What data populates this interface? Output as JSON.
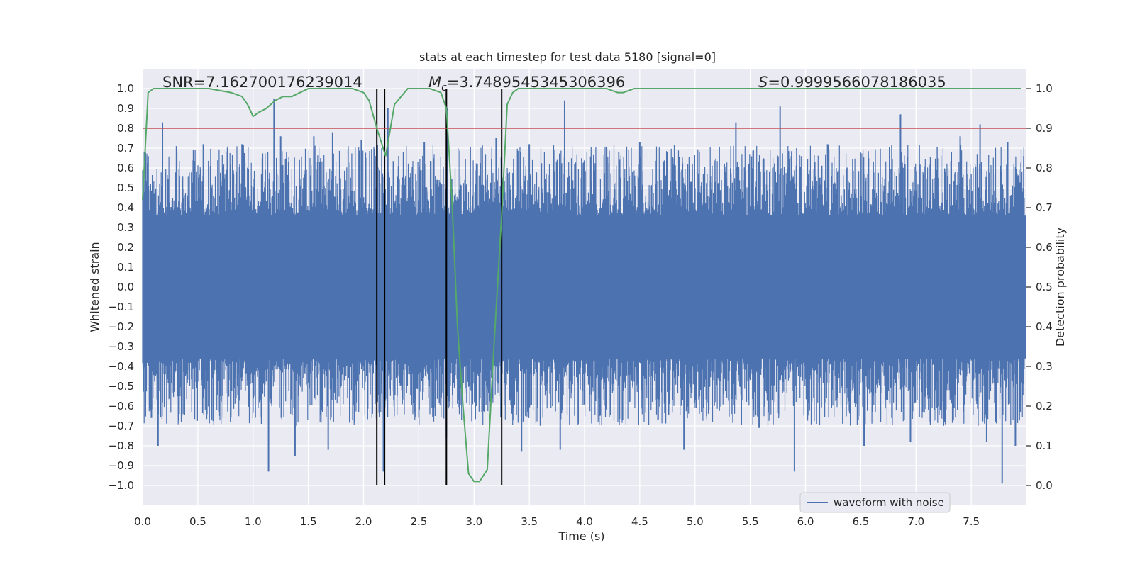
{
  "chart_data": {
    "type": "line",
    "title": "stats at each timestep for test data 5180 [signal=0]",
    "xlabel": "Time (s)",
    "ylabel": "Whitened strain",
    "y2label": "Detection probability",
    "xlim": [
      0.0,
      8.0
    ],
    "ylim": [
      -1.1,
      1.1
    ],
    "y2lim": [
      -0.05,
      1.05
    ],
    "xticks": [
      0.0,
      0.5,
      1.0,
      1.5,
      2.0,
      2.5,
      3.0,
      3.5,
      4.0,
      4.5,
      5.0,
      5.5,
      6.0,
      6.5,
      7.0,
      7.5
    ],
    "xtick_labels": [
      "0.0",
      "0.5",
      "1.0",
      "1.5",
      "2.0",
      "2.5",
      "3.0",
      "3.5",
      "4.0",
      "4.5",
      "5.0",
      "5.5",
      "6.0",
      "6.5",
      "7.0",
      "7.5"
    ],
    "yticks": [
      1.0,
      0.9,
      0.8,
      0.7,
      0.6,
      0.5,
      0.4,
      0.3,
      0.2,
      0.1,
      0.0,
      -0.1,
      -0.2,
      -0.3,
      -0.4,
      -0.5,
      -0.6,
      -0.7,
      -0.8,
      -0.9,
      -1.0
    ],
    "ytick_labels": [
      "1.0",
      "0.9",
      "0.8",
      "0.7",
      "0.6",
      "0.5",
      "0.4",
      "0.3",
      "0.2",
      "0.1",
      "0.0",
      "−0.1",
      "−0.2",
      "−0.3",
      "−0.4",
      "−0.5",
      "−0.6",
      "−0.7",
      "−0.8",
      "−0.9",
      "−1.0"
    ],
    "y2ticks": [
      1.0,
      0.9,
      0.8,
      0.7,
      0.6,
      0.5,
      0.4,
      0.3,
      0.2,
      0.1,
      0.0
    ],
    "y2tick_labels": [
      "1.0",
      "0.9",
      "0.8",
      "0.7",
      "0.6",
      "0.5",
      "0.4",
      "0.3",
      "0.2",
      "0.1",
      "0.0"
    ],
    "grid": true,
    "legend": {
      "entries": [
        "waveform with noise"
      ],
      "placement": "lower-right"
    },
    "annotations": {
      "snr": "SNR=7.162700176239014",
      "mc_prefix": "M",
      "mc_sub": "c",
      "mc_value": "=3.7489545345306396",
      "s_prefix": "S",
      "s_value": "=0.9999566078186035"
    },
    "series": [
      {
        "name": "waveform with noise",
        "kind": "strain",
        "axis": "left",
        "color": "#4c72b0",
        "envelope": {
          "core": 0.36,
          "typical_peak": 0.7
        },
        "spikes": [
          {
            "x": 0.05,
            "y": 0.66
          },
          {
            "x": 0.08,
            "y": -0.66
          },
          {
            "x": 0.18,
            "y": 0.83
          },
          {
            "x": 0.14,
            "y": -0.8
          },
          {
            "x": 0.33,
            "y": -0.64
          },
          {
            "x": 0.55,
            "y": 0.72
          },
          {
            "x": 0.7,
            "y": -0.55
          },
          {
            "x": 0.9,
            "y": 0.72
          },
          {
            "x": 1.14,
            "y": -0.93
          },
          {
            "x": 1.19,
            "y": 0.95
          },
          {
            "x": 1.25,
            "y": 0.76
          },
          {
            "x": 1.38,
            "y": -0.85
          },
          {
            "x": 1.55,
            "y": 0.76
          },
          {
            "x": 1.68,
            "y": -0.82
          },
          {
            "x": 1.72,
            "y": 0.78
          },
          {
            "x": 1.98,
            "y": 0.74
          },
          {
            "x": 2.18,
            "y": -0.93
          },
          {
            "x": 2.22,
            "y": 0.9
          },
          {
            "x": 2.55,
            "y": 0.73
          },
          {
            "x": 2.65,
            "y": -0.65
          },
          {
            "x": 2.76,
            "y": 0.9
          },
          {
            "x": 2.75,
            "y": -0.76
          },
          {
            "x": 3.2,
            "y": 0.75
          },
          {
            "x": 3.43,
            "y": -0.83
          },
          {
            "x": 3.5,
            "y": 0.72
          },
          {
            "x": 3.78,
            "y": -0.82
          },
          {
            "x": 3.82,
            "y": 0.94
          },
          {
            "x": 4.2,
            "y": 0.7
          },
          {
            "x": 4.5,
            "y": 0.73
          },
          {
            "x": 4.9,
            "y": -0.82
          },
          {
            "x": 5.37,
            "y": 0.83
          },
          {
            "x": 5.58,
            "y": -0.71
          },
          {
            "x": 5.77,
            "y": 0.91
          },
          {
            "x": 5.9,
            "y": -0.93
          },
          {
            "x": 6.2,
            "y": 0.72
          },
          {
            "x": 6.53,
            "y": -0.8
          },
          {
            "x": 6.86,
            "y": 0.87
          },
          {
            "x": 6.95,
            "y": -0.78
          },
          {
            "x": 7.4,
            "y": 0.76
          },
          {
            "x": 7.58,
            "y": 0.82
          },
          {
            "x": 7.64,
            "y": -0.78
          },
          {
            "x": 7.78,
            "y": -0.99
          },
          {
            "x": 7.83,
            "y": 0.73
          },
          {
            "x": 7.9,
            "y": -0.8
          }
        ]
      },
      {
        "name": "detection probability",
        "kind": "line",
        "axis": "right",
        "color": "#55a868",
        "x": [
          0.0,
          0.05,
          0.1,
          0.3,
          0.6,
          0.8,
          0.9,
          0.95,
          1.0,
          1.05,
          1.12,
          1.2,
          1.27,
          1.35,
          1.5,
          1.7,
          1.9,
          2.0,
          2.05,
          2.12,
          2.2,
          2.28,
          2.4,
          2.6,
          2.7,
          2.75,
          2.8,
          2.85,
          2.9,
          2.95,
          3.0,
          3.05,
          3.12,
          3.18,
          3.25,
          3.3,
          3.35,
          3.4,
          3.6,
          3.8,
          4.0,
          4.2,
          4.3,
          4.35,
          4.45,
          4.6,
          5.0,
          6.0,
          7.0,
          7.95
        ],
        "values": [
          0.72,
          0.99,
          1.0,
          1.0,
          1.0,
          0.99,
          0.98,
          0.96,
          0.93,
          0.94,
          0.95,
          0.97,
          0.98,
          0.98,
          1.0,
          1.0,
          1.0,
          0.99,
          0.97,
          0.9,
          0.83,
          0.96,
          1.0,
          1.0,
          0.99,
          0.95,
          0.72,
          0.4,
          0.2,
          0.03,
          0.01,
          0.01,
          0.04,
          0.35,
          0.68,
          0.96,
          0.99,
          1.0,
          1.0,
          1.0,
          1.0,
          1.0,
          0.99,
          0.99,
          1.0,
          1.0,
          1.0,
          1.0,
          1.0,
          1.0
        ]
      },
      {
        "name": "threshold",
        "kind": "hline",
        "axis": "right",
        "color": "#c44e52",
        "value": 0.9
      }
    ],
    "vlines": [
      2.12,
      2.19,
      2.75,
      3.25
    ]
  }
}
